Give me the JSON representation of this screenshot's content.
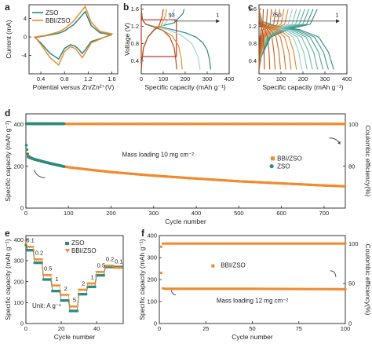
{
  "panels": {
    "a": "a",
    "b": "b",
    "c": "c",
    "d": "d",
    "e": "e",
    "f": "f"
  },
  "colors": {
    "zso": "#2a8a80",
    "bbi_zso": "#f28a2e",
    "dark_orange": "#b5501a",
    "light_teal": "#9fd8cf"
  },
  "chart_data": [
    {
      "id": "a",
      "type": "line",
      "xlabel": "Potential versus Zn/Zn²⁺(V)",
      "ylabel": "Current (mA)",
      "xlim": [
        0.2,
        1.7
      ],
      "ylim": [
        -8,
        7
      ],
      "xticks": [
        "0.4",
        "0.8",
        "1.2",
        "1.6"
      ],
      "yticks": [
        "-4",
        "0",
        "4"
      ],
      "legend": [
        "ZSO",
        "BBI/ZSO"
      ],
      "legend_position": "top-left",
      "series": [
        {
          "name": "ZSO",
          "x": [
            0.3,
            0.5,
            0.7,
            0.8,
            0.88,
            0.95,
            1.05,
            1.15,
            1.25,
            1.4,
            1.6,
            1.4,
            1.25,
            1.15,
            1.1,
            1.05,
            0.98,
            0.9,
            0.8,
            0.7,
            0.55,
            0.4,
            0.3
          ],
          "y": [
            -0.1,
            0.3,
            0.8,
            1.3,
            2.0,
            2.6,
            4.0,
            5.5,
            2.5,
            0.9,
            0.5,
            -0.4,
            -1.0,
            -2.8,
            -3.6,
            -2.8,
            -2.0,
            -1.7,
            -2.5,
            -4.8,
            -3.5,
            -1.3,
            -0.1
          ]
        },
        {
          "name": "BBI/ZSO",
          "x": [
            0.3,
            0.5,
            0.7,
            0.8,
            0.88,
            0.95,
            1.05,
            1.15,
            1.25,
            1.4,
            1.6,
            1.4,
            1.25,
            1.15,
            1.1,
            1.05,
            0.98,
            0.9,
            0.8,
            0.7,
            0.55,
            0.4,
            0.3
          ],
          "y": [
            0.0,
            0.4,
            1.1,
            1.8,
            2.6,
            3.4,
            5.0,
            6.6,
            3.2,
            1.2,
            0.7,
            -0.5,
            -1.3,
            -3.5,
            -4.5,
            -3.6,
            -2.5,
            -2.1,
            -3.2,
            -6.1,
            -4.4,
            -1.6,
            0.0
          ]
        }
      ]
    },
    {
      "id": "b",
      "type": "line",
      "xlabel": "Specific capacity (mAh g⁻¹)",
      "ylabel": "Voltage (V)",
      "xlim": [
        0,
        400
      ],
      "ylim": [
        0.1,
        1.7
      ],
      "xticks": [
        "0",
        "100",
        "200",
        "300",
        "400"
      ],
      "yticks": [
        "0.4",
        "0.8",
        "1.2",
        "1.6"
      ],
      "annotations": [
        "93",
        "1"
      ],
      "series": [
        {
          "name": "",
          "color": "zso",
          "discharge_x": [
            0,
            5,
            20,
            60,
            120,
            200,
            250,
            280,
            300,
            310,
            316
          ],
          "discharge_y": [
            1.6,
            1.35,
            1.25,
            1.2,
            1.15,
            1.05,
            0.95,
            0.82,
            0.65,
            0.45,
            0.2
          ],
          "charge_x": [
            0,
            3,
            10,
            30,
            60,
            100,
            150,
            190,
            195
          ],
          "charge_y": [
            0.2,
            0.4,
            0.7,
            0.95,
            1.15,
            1.22,
            1.28,
            1.5,
            1.6
          ]
        },
        {
          "name": "",
          "color": "light_teal",
          "discharge_x": [
            0,
            5,
            20,
            60,
            120,
            180,
            230,
            258,
            268
          ],
          "discharge_y": [
            1.6,
            1.35,
            1.25,
            1.2,
            1.12,
            1.0,
            0.8,
            0.5,
            0.2
          ],
          "charge_x": [
            0,
            3,
            10,
            30,
            60,
            100,
            140,
            150
          ],
          "charge_y": [
            0.2,
            0.4,
            0.7,
            0.95,
            1.15,
            1.22,
            1.45,
            1.6
          ]
        },
        {
          "name": "",
          "color": "bbi_zso",
          "discharge_x": [
            0,
            5,
            20,
            60,
            100,
            140,
            170,
            182,
            186
          ],
          "discharge_y": [
            1.6,
            1.35,
            1.25,
            1.18,
            1.1,
            0.98,
            0.75,
            0.45,
            0.2
          ],
          "charge_x": [
            0,
            3,
            10,
            30,
            60,
            90,
            110,
            115
          ],
          "charge_y": [
            0.2,
            0.4,
            0.7,
            0.95,
            1.12,
            1.2,
            1.45,
            1.6
          ]
        },
        {
          "name": "",
          "color": "dark_orange",
          "discharge_x": [
            0,
            5,
            20,
            60,
            100,
            130,
            150,
            158,
            161
          ],
          "discharge_y": [
            1.6,
            1.35,
            1.25,
            1.18,
            1.1,
            0.95,
            0.7,
            0.4,
            0.2
          ],
          "charge_x": [
            0,
            3,
            10,
            30,
            60,
            80,
            96,
            100
          ],
          "charge_y": [
            0.2,
            0.4,
            0.7,
            0.95,
            1.12,
            1.2,
            1.45,
            1.6
          ]
        }
      ],
      "highlight_box": {
        "x": [
          0,
          160
        ],
        "y": [
          0.5,
          1.35
        ]
      }
    },
    {
      "id": "c",
      "type": "line",
      "xlabel": "Specific capacity (mAh g⁻¹)",
      "ylabel": "",
      "xlim": [
        0,
        400
      ],
      "ylim": [
        0.1,
        1.7
      ],
      "xticks": [
        "0",
        "100",
        "200",
        "300",
        "400"
      ],
      "yticks": [
        "0.4",
        "0.8",
        "1.2",
        "1.6"
      ],
      "annotations": [
        "750",
        "1"
      ],
      "curve_count": 14,
      "capacity_range": [
        25,
        340
      ]
    },
    {
      "id": "d",
      "type": "scatter",
      "xlabel": "Cycle number",
      "ylabel": "Specific capacity (mAh g⁻¹)",
      "y2label": "Coulombic efficiency(%)",
      "xlim": [
        0,
        750
      ],
      "ylim": [
        0,
        450
      ],
      "y2lim": [
        60,
        105
      ],
      "xticks": [
        "0",
        "100",
        "200",
        "300",
        "400",
        "500",
        "600",
        "700"
      ],
      "yticks": [
        "0",
        "200",
        "400"
      ],
      "y2ticks": [
        "80",
        "100"
      ],
      "legend": [
        "BBI/ZSO",
        "ZSO"
      ],
      "legend_position": "center-right",
      "note": "Mass loading 10 mg cm⁻²",
      "series": [
        {
          "name": "BBI/ZSO",
          "kind": "capacity",
          "x": [
            1,
            5,
            10,
            20,
            40,
            60,
            100,
            150,
            200,
            300,
            400,
            500,
            600,
            700,
            750
          ],
          "y": [
            255,
            250,
            243,
            232,
            222,
            212,
            195,
            183,
            172,
            155,
            141,
            128,
            118,
            108,
            104
          ]
        },
        {
          "name": "ZSO",
          "kind": "capacity",
          "x": [
            1,
            5,
            10,
            20,
            30,
            40,
            60,
            80,
            90
          ],
          "y": [
            300,
            245,
            240,
            233,
            228,
            222,
            212,
            203,
            198
          ]
        },
        {
          "name": "BBI/ZSO",
          "kind": "efficiency",
          "x": [
            1,
            750
          ],
          "y": [
            100.2,
            100.2
          ]
        },
        {
          "name": "ZSO",
          "kind": "efficiency",
          "x": [
            1,
            90
          ],
          "y": [
            100.3,
            100.3
          ]
        }
      ]
    },
    {
      "id": "e",
      "type": "line",
      "xlabel": "Cycle number",
      "ylabel": "Specific capacity (mAh g⁻¹)",
      "xlim": [
        0,
        55
      ],
      "ylim": [
        0,
        420
      ],
      "xticks": [
        "0",
        "20",
        "40"
      ],
      "yticks": [
        "0",
        "100",
        "200",
        "300",
        "400"
      ],
      "legend": [
        "ZSO",
        "BBI/ZSO"
      ],
      "legend_position": "top-center",
      "note": "Unit: A g⁻¹",
      "rate_labels": [
        "0.1",
        "0.2",
        "0.5",
        "1",
        "2",
        "5",
        "2",
        "1",
        "0.5",
        "0.2",
        "0.1"
      ],
      "series": [
        {
          "name": "ZSO",
          "segments": [
            [
              0,
              4,
              350
            ],
            [
              5,
              9,
              290
            ],
            [
              10,
              14,
              210
            ],
            [
              15,
              19,
              155
            ],
            [
              20,
              24,
              110
            ],
            [
              25,
              29,
              60
            ],
            [
              30,
              34,
              140
            ],
            [
              35,
              39,
              175
            ],
            [
              40,
              44,
              230
            ],
            [
              45,
              49,
              270
            ],
            [
              50,
              54,
              270
            ]
          ]
        },
        {
          "name": "BBI/ZSO",
          "segments": [
            [
              0,
              4,
              365
            ],
            [
              5,
              9,
              305
            ],
            [
              10,
              14,
              230
            ],
            [
              15,
              19,
              180
            ],
            [
              20,
              24,
              135
            ],
            [
              25,
              29,
              80
            ],
            [
              30,
              34,
              160
            ],
            [
              35,
              39,
              190
            ],
            [
              40,
              44,
              245
            ],
            [
              45,
              49,
              275
            ],
            [
              50,
              54,
              265
            ]
          ]
        }
      ]
    },
    {
      "id": "f",
      "type": "scatter",
      "xlabel": "Cycle number",
      "ylabel": "Specific capacity (mAh g⁻¹)",
      "y2label": "Coulombic efficiency(%)",
      "xlim": [
        0,
        100
      ],
      "ylim": [
        0,
        400
      ],
      "y2lim": [
        0,
        110
      ],
      "xticks": [
        "0",
        "25",
        "50",
        "75",
        "100"
      ],
      "yticks": [
        "0",
        "100",
        "200",
        "300",
        "400"
      ],
      "y2ticks": [
        "0",
        "50",
        "100"
      ],
      "legend": [
        "BBI/ZSO"
      ],
      "legend_position": "center",
      "note": "Mass loading 12 mg cm⁻²",
      "series": [
        {
          "name": "BBI/ZSO",
          "kind": "capacity",
          "x": [
            1,
            2,
            3,
            4,
            10,
            25,
            50,
            75,
            100
          ],
          "y": [
            230,
            160,
            158,
            158,
            158,
            158,
            158,
            157,
            156
          ]
        },
        {
          "name": "BBI/ZSO",
          "kind": "efficiency",
          "x": [
            1,
            2,
            3,
            10,
            50,
            100
          ],
          "y": [
            96,
            100,
            100,
            100,
            100,
            100
          ]
        }
      ]
    }
  ]
}
